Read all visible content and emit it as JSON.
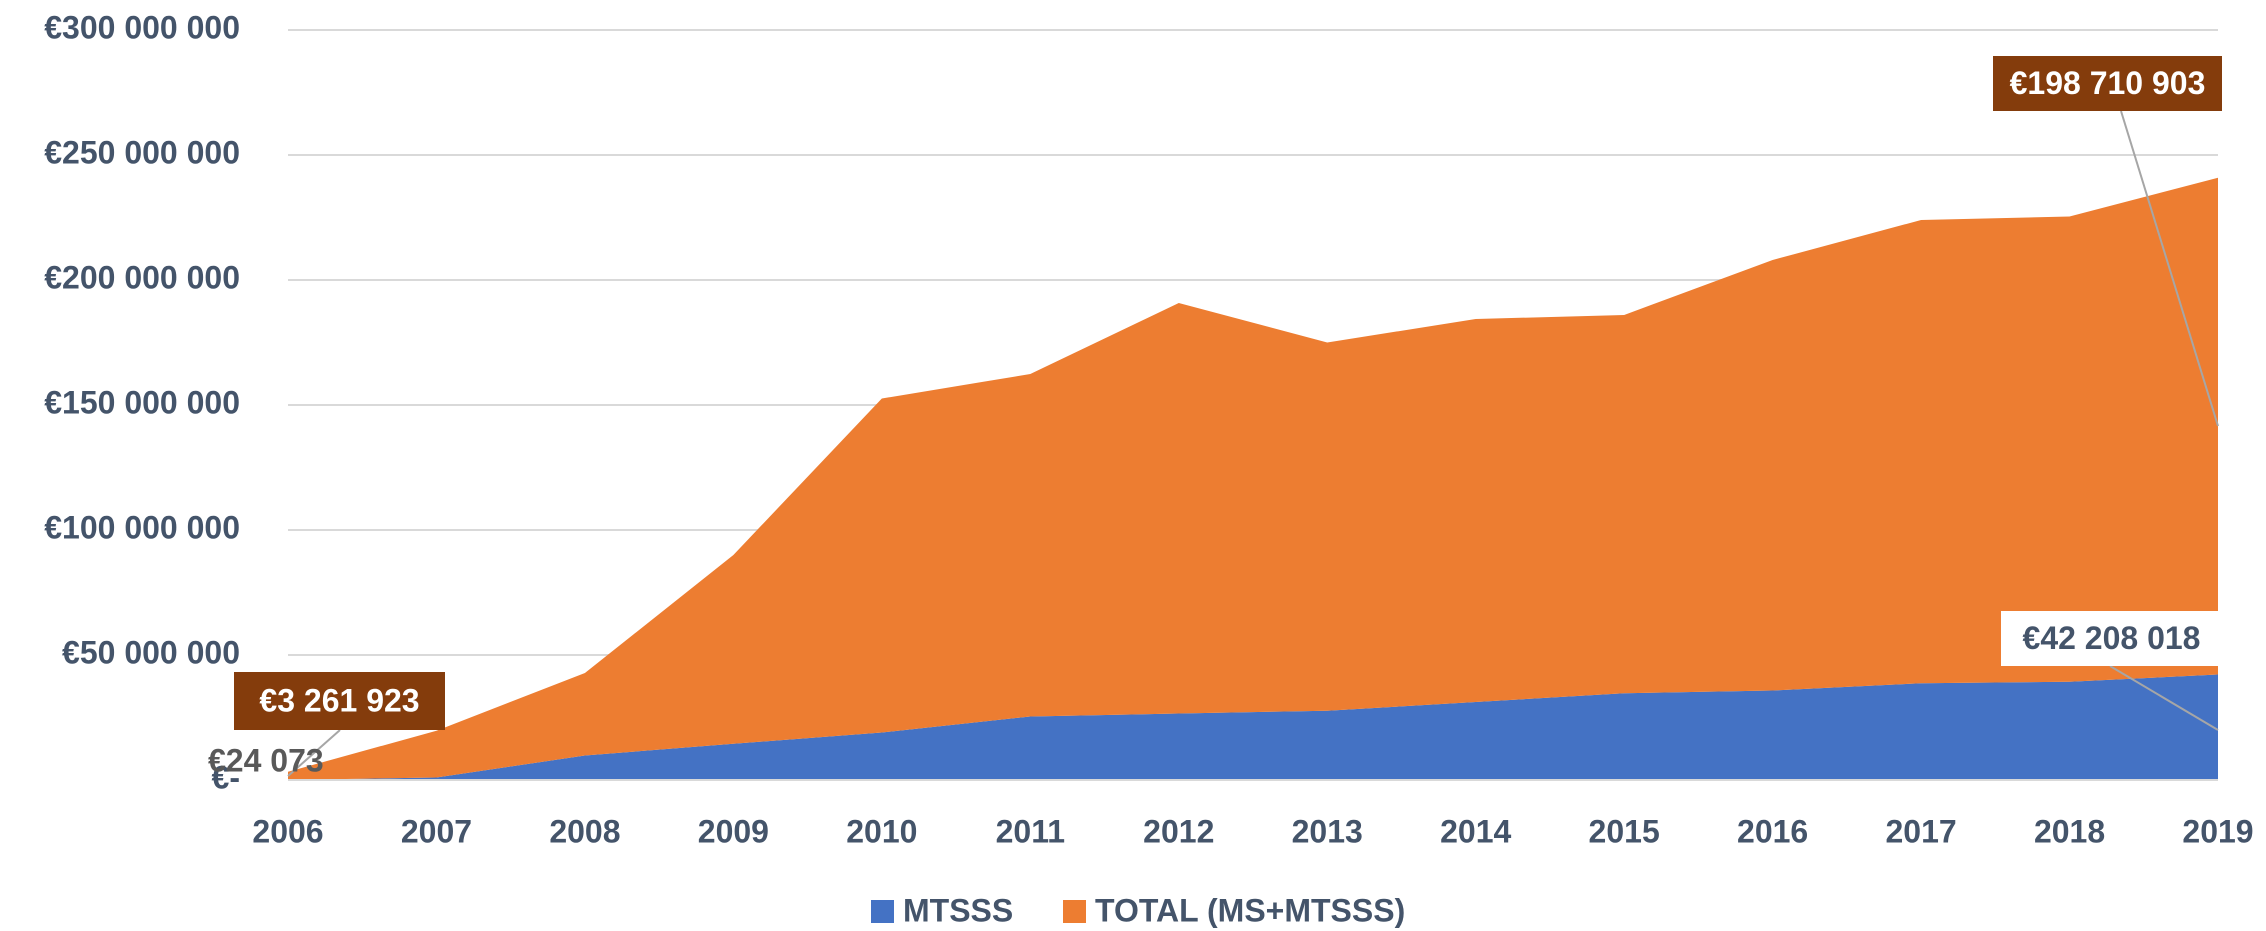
{
  "chart_data": {
    "type": "stacked_area",
    "categories": [
      "2006",
      "2007",
      "2008",
      "2009",
      "2010",
      "2011",
      "2012",
      "2013",
      "2014",
      "2015",
      "2016",
      "2017",
      "2018",
      "2019"
    ],
    "series": [
      {
        "name": "MTSSS",
        "color": "#4472c4",
        "values": [
          24073,
          1000000,
          9800000,
          14500000,
          19000000,
          25400000,
          26600000,
          27700000,
          31200000,
          34700000,
          35800000,
          38700000,
          39300000,
          42208018
        ],
        "value_labels": [
          "€24 073",
          null,
          null,
          null,
          null,
          null,
          null,
          null,
          null,
          null,
          null,
          null,
          null,
          "€42 208 018"
        ]
      },
      {
        "name": "TOTAL (MS+MTSSS)",
        "color": "#ed7d31",
        "values": [
          3261923,
          18700000,
          33000000,
          75500000,
          133600000,
          137000000,
          164200000,
          147300000,
          153200000,
          151300000,
          172200000,
          185300000,
          186100000,
          198710903
        ],
        "value_labels": [
          "€3 261 923",
          null,
          null,
          null,
          null,
          null,
          null,
          null,
          null,
          null,
          null,
          null,
          null,
          "€198 710 903"
        ]
      }
    ],
    "ylim": [
      0,
      300000000
    ],
    "yticks": [
      {
        "value": 0,
        "label": "€-"
      },
      {
        "value": 50000000,
        "label": "€50 000 000"
      },
      {
        "value": 100000000,
        "label": "€100 000 000"
      },
      {
        "value": 150000000,
        "label": "€150 000 000"
      },
      {
        "value": 200000000,
        "label": "€200 000 000"
      },
      {
        "value": 250000000,
        "label": "€250 000 000"
      },
      {
        "value": 300000000,
        "label": "€300 000 000"
      }
    ],
    "grid": true,
    "legend": "bottom"
  }
}
